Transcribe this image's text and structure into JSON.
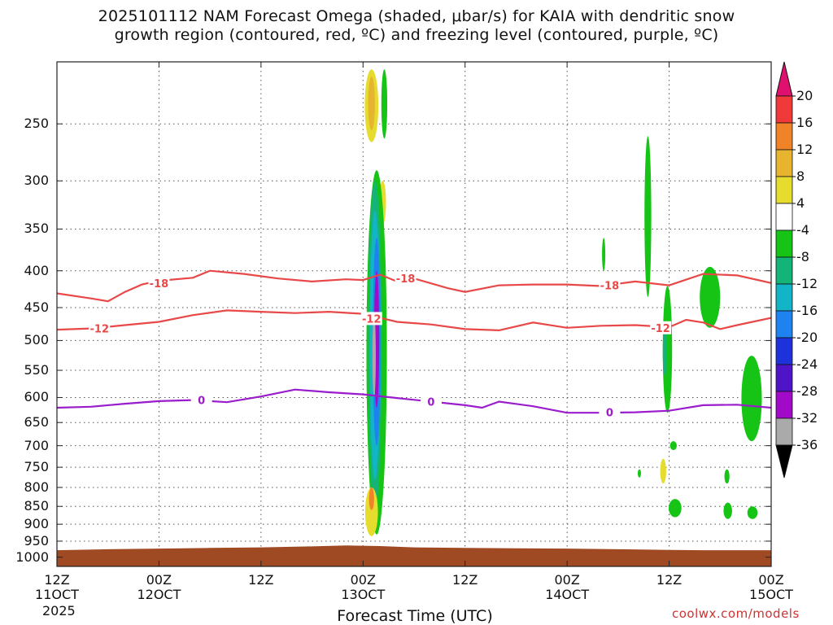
{
  "title_line1": "2025101112 NAM Forecast Omega (shaded, μbar/s) for KAIA with dendritic snow",
  "title_line2": "growth region (contoured, red, ºC) and freezing level (contoured, purple, ºC)",
  "credit": "coolwx.com/models",
  "chart_data": {
    "type": "heatmap",
    "xlabel": "Forecast Time (UTC)",
    "x_ticks": [
      {
        "hours": 0,
        "label": "12Z",
        "sub": "11OCT"
      },
      {
        "hours": 12,
        "label": "00Z",
        "sub": "12OCT"
      },
      {
        "hours": 24,
        "label": "12Z",
        "sub": ""
      },
      {
        "hours": 36,
        "label": "00Z",
        "sub": "13OCT"
      },
      {
        "hours": 48,
        "label": "12Z",
        "sub": ""
      },
      {
        "hours": 60,
        "label": "00Z",
        "sub": "14OCT"
      },
      {
        "hours": 72,
        "label": "12Z",
        "sub": ""
      },
      {
        "hours": 84,
        "label": "00Z",
        "sub": "15OCT"
      }
    ],
    "x_year": "2025",
    "ylabel": "",
    "y_ticks": [
      250,
      300,
      350,
      400,
      450,
      500,
      550,
      600,
      650,
      700,
      750,
      800,
      850,
      900,
      950,
      1000
    ],
    "y_log": true,
    "ylim": [
      1030,
      205
    ],
    "xlim_hours": [
      0,
      84
    ],
    "grid": true,
    "colorbar": {
      "labels": [
        "20",
        "16",
        "12",
        "8",
        "4",
        "-4",
        "-8",
        "-12",
        "-16",
        "-20",
        "-24",
        "-28",
        "-32",
        "-36"
      ],
      "colors": [
        "#e0106e",
        "#f03a3a",
        "#f08228",
        "#e6b42e",
        "#e6dc2e",
        "#ffffff",
        "#16c416",
        "#14b478",
        "#14b4c8",
        "#1e82f0",
        "#1e32dc",
        "#5014c8",
        "#a00ac8",
        "#aaaaaa",
        "#000000"
      ]
    },
    "contours": [
      {
        "label": "-18",
        "color": "#e84848",
        "points": [
          [
            0,
            430
          ],
          [
            4,
            437
          ],
          [
            6,
            441
          ],
          [
            8,
            428
          ],
          [
            10,
            418
          ],
          [
            12,
            413
          ],
          [
            16,
            409
          ],
          [
            18,
            400
          ],
          [
            22,
            404
          ],
          [
            26,
            410
          ],
          [
            30,
            414
          ],
          [
            34,
            411
          ],
          [
            36,
            412
          ],
          [
            38,
            405
          ],
          [
            40,
            414
          ],
          [
            42,
            410
          ],
          [
            46,
            423
          ],
          [
            48,
            428
          ],
          [
            52,
            419
          ],
          [
            56,
            418
          ],
          [
            60,
            418
          ],
          [
            64,
            420
          ],
          [
            68,
            414
          ],
          [
            72,
            419
          ],
          [
            76,
            404
          ],
          [
            80,
            406
          ],
          [
            84,
            416
          ]
        ],
        "label_at": [
          [
            12,
            416
          ],
          [
            41,
            410
          ],
          [
            65,
            419
          ]
        ]
      },
      {
        "label": "-12",
        "color": "#e84848",
        "points": [
          [
            0,
            483
          ],
          [
            4,
            481
          ],
          [
            8,
            476
          ],
          [
            12,
            471
          ],
          [
            16,
            461
          ],
          [
            20,
            454
          ],
          [
            24,
            456
          ],
          [
            28,
            458
          ],
          [
            32,
            456
          ],
          [
            36,
            459
          ],
          [
            40,
            471
          ],
          [
            44,
            475
          ],
          [
            48,
            482
          ],
          [
            52,
            484
          ],
          [
            56,
            472
          ],
          [
            60,
            480
          ],
          [
            64,
            477
          ],
          [
            68,
            476
          ],
          [
            72,
            479
          ],
          [
            74,
            468
          ],
          [
            76,
            472
          ],
          [
            78,
            482
          ],
          [
            80,
            476
          ],
          [
            84,
            465
          ]
        ],
        "label_at": [
          [
            5,
            481
          ],
          [
            37,
            466
          ],
          [
            71,
            480
          ]
        ]
      },
      {
        "label": "0",
        "color": "#9a1ccc",
        "points": [
          [
            0,
            620
          ],
          [
            4,
            618
          ],
          [
            8,
            612
          ],
          [
            12,
            607
          ],
          [
            16,
            605
          ],
          [
            20,
            609
          ],
          [
            24,
            598
          ],
          [
            28,
            585
          ],
          [
            32,
            590
          ],
          [
            36,
            594
          ],
          [
            40,
            601
          ],
          [
            44,
            608
          ],
          [
            48,
            615
          ],
          [
            50,
            620
          ],
          [
            52,
            608
          ],
          [
            56,
            617
          ],
          [
            60,
            630
          ],
          [
            64,
            630
          ],
          [
            68,
            629
          ],
          [
            72,
            626
          ],
          [
            76,
            615
          ],
          [
            80,
            614
          ],
          [
            84,
            620
          ]
        ],
        "label_at": [
          [
            17,
            605
          ],
          [
            44,
            608
          ],
          [
            65,
            629
          ]
        ]
      }
    ],
    "shaded_cells": [
      {
        "h": 37.0,
        "p0": 210,
        "p1": 265,
        "w": 1.6,
        "c": "#e6dc2e"
      },
      {
        "h": 37.0,
        "p0": 215,
        "p1": 255,
        "w": 0.8,
        "c": "#e6b42e"
      },
      {
        "h": 38.5,
        "p0": 210,
        "p1": 262,
        "w": 0.7,
        "c": "#16c416"
      },
      {
        "h": 38.3,
        "p0": 300,
        "p1": 345,
        "w": 0.8,
        "c": "#e6dc2e"
      },
      {
        "h": 37.6,
        "p0": 290,
        "p1": 930,
        "w": 2.4,
        "c": "#16c416"
      },
      {
        "h": 37.4,
        "p0": 300,
        "p1": 860,
        "w": 1.6,
        "c": "#14b478"
      },
      {
        "h": 37.4,
        "p0": 330,
        "p1": 780,
        "w": 1.2,
        "c": "#14b4c8"
      },
      {
        "h": 37.6,
        "p0": 360,
        "p1": 700,
        "w": 0.9,
        "c": "#1e82f0"
      },
      {
        "h": 37.6,
        "p0": 400,
        "p1": 620,
        "w": 0.6,
        "c": "#a00ac8"
      },
      {
        "h": 37.3,
        "p0": 460,
        "p1": 600,
        "w": 0.4,
        "c": "#aaaaaa"
      },
      {
        "h": 37.0,
        "p0": 800,
        "p1": 935,
        "w": 1.5,
        "c": "#e6dc2e"
      },
      {
        "h": 37.0,
        "p0": 800,
        "p1": 860,
        "w": 0.6,
        "c": "#f08228"
      },
      {
        "h": 64.3,
        "p0": 360,
        "p1": 400,
        "w": 0.3,
        "c": "#16c416"
      },
      {
        "h": 69.5,
        "p0": 260,
        "p1": 435,
        "w": 0.8,
        "c": "#16c416"
      },
      {
        "h": 71.8,
        "p0": 420,
        "p1": 630,
        "w": 1.1,
        "c": "#16c416"
      },
      {
        "h": 71.5,
        "p0": 480,
        "p1": 560,
        "w": 0.5,
        "c": "#14b478"
      },
      {
        "h": 72.5,
        "p0": 690,
        "p1": 710,
        "w": 0.8,
        "c": "#16c416"
      },
      {
        "h": 71.3,
        "p0": 730,
        "p1": 790,
        "w": 0.7,
        "c": "#e6dc2e"
      },
      {
        "h": 68.5,
        "p0": 755,
        "p1": 775,
        "w": 0.3,
        "c": "#16c416"
      },
      {
        "h": 76.8,
        "p0": 395,
        "p1": 480,
        "w": 2.4,
        "c": "#16c416"
      },
      {
        "h": 78.8,
        "p0": 755,
        "p1": 790,
        "w": 0.6,
        "c": "#16c416"
      },
      {
        "h": 81.7,
        "p0": 525,
        "p1": 690,
        "w": 2.4,
        "c": "#16c416"
      },
      {
        "h": 72.7,
        "p0": 830,
        "p1": 880,
        "w": 1.5,
        "c": "#16c416"
      },
      {
        "h": 78.9,
        "p0": 840,
        "p1": 885,
        "w": 1.0,
        "c": "#16c416"
      },
      {
        "h": 81.8,
        "p0": 850,
        "p1": 885,
        "w": 1.2,
        "c": "#16c416"
      }
    ],
    "terrain": {
      "color": "#a04a24",
      "surface": [
        [
          0,
          978
        ],
        [
          6,
          975
        ],
        [
          12,
          973
        ],
        [
          18,
          971
        ],
        [
          24,
          969
        ],
        [
          30,
          966
        ],
        [
          34,
          963
        ],
        [
          38,
          965
        ],
        [
          42,
          969
        ],
        [
          48,
          971
        ],
        [
          54,
          972
        ],
        [
          60,
          973
        ],
        [
          66,
          975
        ],
        [
          72,
          977
        ],
        [
          76,
          978
        ],
        [
          84,
          978
        ]
      ]
    }
  }
}
